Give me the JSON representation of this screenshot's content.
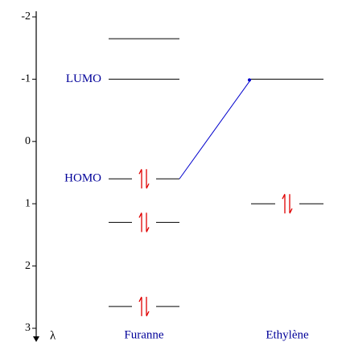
{
  "axis": {
    "label": "λ",
    "lim": [
      -2,
      3
    ],
    "ticks": [
      -2,
      -1,
      0,
      1,
      2,
      3
    ]
  },
  "columns": [
    {
      "name": "Furanne",
      "levels": [
        {
          "value": -1.65,
          "occupied": false
        },
        {
          "value": -1,
          "occupied": false,
          "label": "LUMO"
        },
        {
          "value": 0.6,
          "occupied": true,
          "label": "HOMO"
        },
        {
          "value": 1.3,
          "occupied": true
        },
        {
          "value": 2.65,
          "occupied": true
        }
      ]
    },
    {
      "name": "Ethylène",
      "levels": [
        {
          "value": -1,
          "occupied": false
        },
        {
          "value": 1,
          "occupied": true
        }
      ]
    }
  ],
  "correlation": {
    "from": [
      0,
      2
    ],
    "to": [
      1,
      0
    ],
    "color": "#0000cc"
  },
  "electron_color": "#e00000",
  "label_color": "#000099"
}
